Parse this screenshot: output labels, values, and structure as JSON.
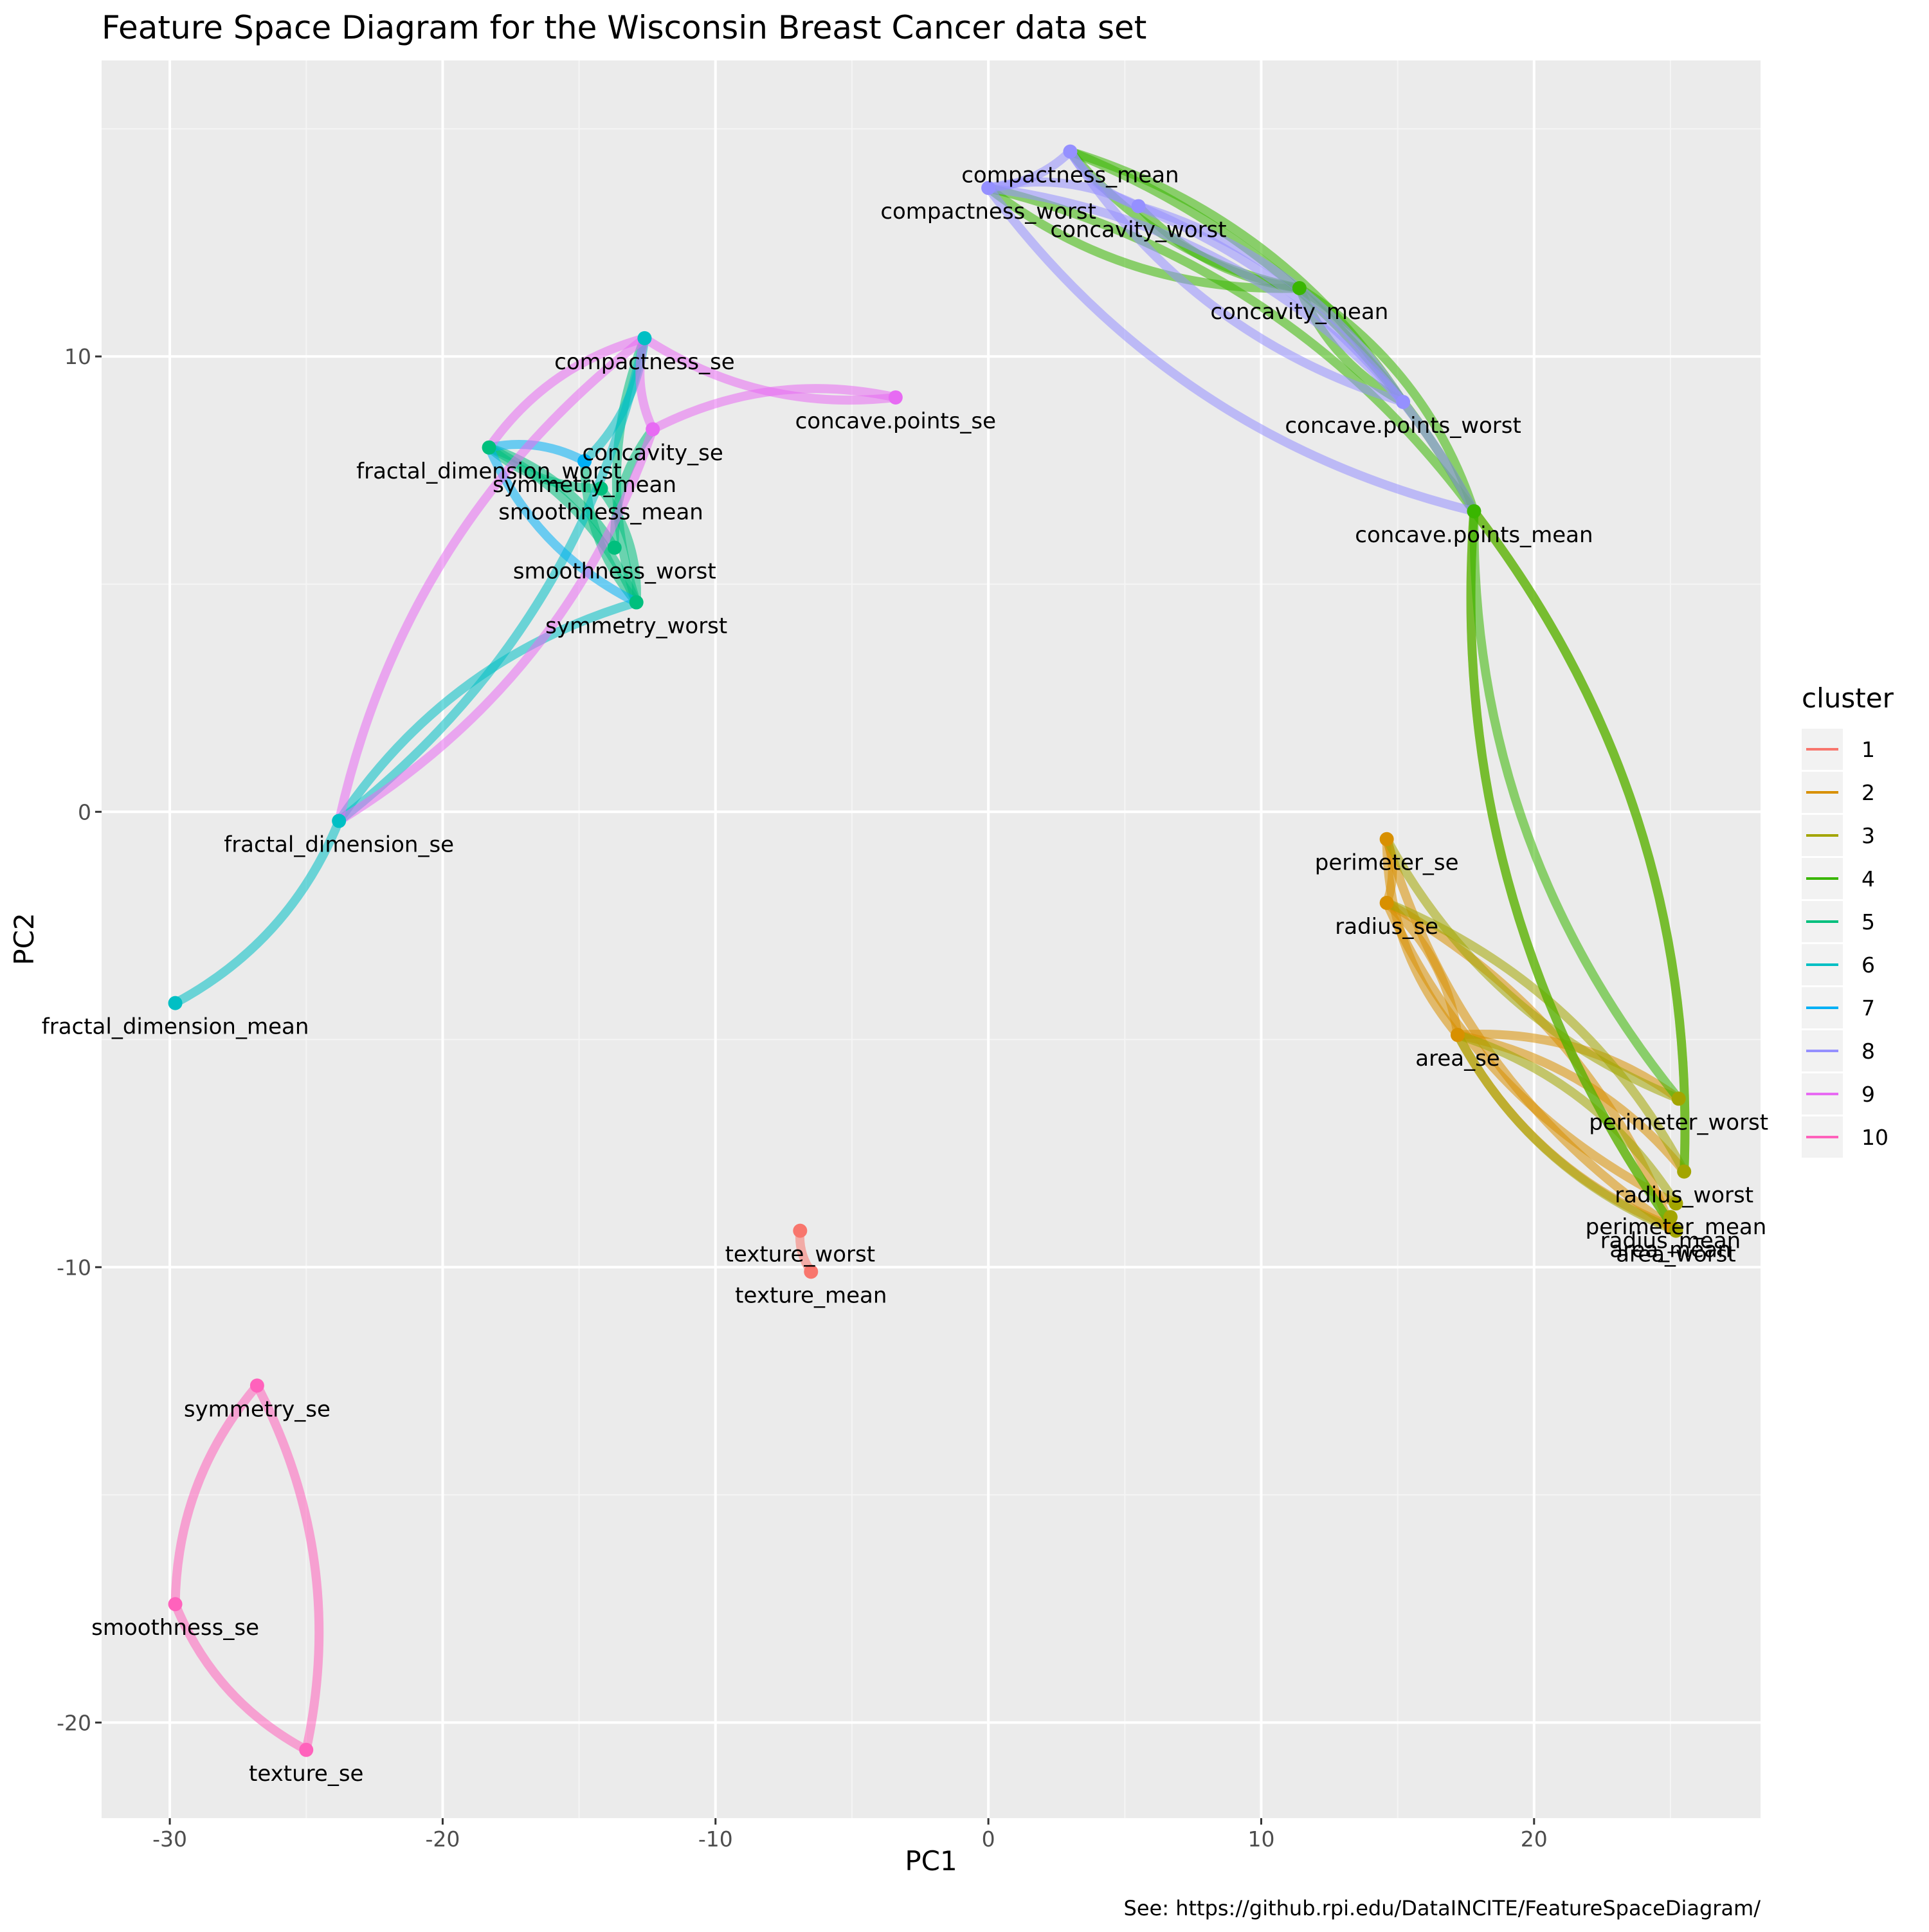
{
  "chart_data": {
    "type": "network",
    "title": "Feature Space Diagram for the Wisconsin Breast Cancer data set",
    "xlabel": "PC1",
    "ylabel": "PC2",
    "xlim": [
      -32.5,
      28.3
    ],
    "ylim": [
      -22.1,
      16.5
    ],
    "x_ticks": [
      -30,
      -20,
      -10,
      0,
      10,
      20
    ],
    "y_ticks": [
      -20,
      -10,
      0,
      10
    ],
    "grid": true,
    "legend": {
      "title": "cluster",
      "placement": "right",
      "entries": [
        "1",
        "2",
        "3",
        "4",
        "5",
        "6",
        "7",
        "8",
        "9",
        "10"
      ]
    },
    "cluster_colors": {
      "1": "#F8766D",
      "2": "#D89000",
      "3": "#A3A500",
      "4": "#39B600",
      "5": "#00BF7D",
      "6": "#00BFC4",
      "7": "#00B0F6",
      "8": "#9590FF",
      "9": "#E76BF3",
      "10": "#FF62BC"
    },
    "caption": "See: https://github.rpi.edu/DataINCITE/FeatureSpaceDiagram/",
    "nodes": [
      {
        "id": "texture_worst",
        "label": "texture_worst",
        "x": -6.9,
        "y": -9.2,
        "cluster": "1"
      },
      {
        "id": "texture_mean",
        "label": "texture_mean",
        "x": -6.5,
        "y": -10.1,
        "cluster": "1"
      },
      {
        "id": "perimeter_se",
        "label": "perimeter_se",
        "x": 14.6,
        "y": -0.6,
        "cluster": "2"
      },
      {
        "id": "radius_se",
        "label": "radius_se",
        "x": 14.6,
        "y": -2.0,
        "cluster": "2"
      },
      {
        "id": "area_se",
        "label": "area_se",
        "x": 17.2,
        "y": -4.9,
        "cluster": "2"
      },
      {
        "id": "area_mean",
        "label": "area_mean",
        "x": 25.0,
        "y": -9.1,
        "cluster": "2"
      },
      {
        "id": "perimeter_worst",
        "label": "perimeter_worst",
        "x": 25.3,
        "y": -6.3,
        "cluster": "3"
      },
      {
        "id": "perimeter_mean",
        "label": "perimeter_mean",
        "x": 25.2,
        "y": -8.6,
        "cluster": "3"
      },
      {
        "id": "radius_mean",
        "label": "radius_mean",
        "x": 25.0,
        "y": -8.9,
        "cluster": "3"
      },
      {
        "id": "radius_worst",
        "label": "radius_worst",
        "x": 25.5,
        "y": -7.9,
        "cluster": "3"
      },
      {
        "id": "area_worst",
        "label": "area_worst",
        "x": 25.2,
        "y": -9.2,
        "cluster": "3"
      },
      {
        "id": "concavity_mean",
        "label": "concavity_mean",
        "x": 11.4,
        "y": 11.5,
        "cluster": "4"
      },
      {
        "id": "concave.points_mean",
        "label": "concave.points_mean",
        "x": 17.8,
        "y": 6.6,
        "cluster": "4"
      },
      {
        "id": "fractal_dimension_worst",
        "label": "fractal_dimension_worst",
        "x": -18.3,
        "y": 8.0,
        "cluster": "5"
      },
      {
        "id": "symmetry_worst",
        "label": "symmetry_worst",
        "x": -12.9,
        "y": 4.6,
        "cluster": "5"
      },
      {
        "id": "smoothness_mean",
        "label": "smoothness_mean",
        "x": -14.2,
        "y": 7.1,
        "cluster": "5"
      },
      {
        "id": "smoothness_worst",
        "label": "smoothness_worst",
        "x": -13.7,
        "y": 5.8,
        "cluster": "5"
      },
      {
        "id": "fractal_dimension_se",
        "label": "fractal_dimension_se",
        "x": -23.8,
        "y": -0.2,
        "cluster": "6"
      },
      {
        "id": "fractal_dimension_mean",
        "label": "fractal_dimension_mean",
        "x": -29.8,
        "y": -4.2,
        "cluster": "6"
      },
      {
        "id": "compactness_se",
        "label": "compactness_se",
        "x": -12.6,
        "y": 10.4,
        "cluster": "6"
      },
      {
        "id": "symmetry_mean",
        "label": "symmetry_mean",
        "x": -14.8,
        "y": 7.7,
        "cluster": "7"
      },
      {
        "id": "compactness_worst",
        "label": "compactness_worst",
        "x": 0.0,
        "y": 13.7,
        "cluster": "8"
      },
      {
        "id": "compactness_mean",
        "label": "compactness_mean",
        "x": 3.0,
        "y": 14.5,
        "cluster": "8"
      },
      {
        "id": "concavity_worst",
        "label": "concavity_worst",
        "x": 5.5,
        "y": 13.3,
        "cluster": "8"
      },
      {
        "id": "concave.points_worst",
        "label": "concave.points_worst",
        "x": 15.2,
        "y": 9.0,
        "cluster": "8"
      },
      {
        "id": "concavity_se",
        "label": "concavity_se",
        "x": -12.3,
        "y": 8.4,
        "cluster": "9"
      },
      {
        "id": "concave.points_se",
        "label": "concave.points_se",
        "x": -3.4,
        "y": 9.1,
        "cluster": "9"
      },
      {
        "id": "symmetry_se",
        "label": "symmetry_se",
        "x": -26.8,
        "y": -12.6,
        "cluster": "10"
      },
      {
        "id": "smoothness_se",
        "label": "smoothness_se",
        "x": -29.8,
        "y": -17.4,
        "cluster": "10"
      },
      {
        "id": "texture_se",
        "label": "texture_se",
        "x": -25.0,
        "y": -20.6,
        "cluster": "10"
      }
    ],
    "edges": [
      {
        "cluster": "1",
        "from": "texture_worst",
        "to": "texture_mean"
      },
      {
        "cluster": "2",
        "from": "perimeter_se",
        "to": "radius_se"
      },
      {
        "cluster": "2",
        "from": "perimeter_se",
        "to": "area_se"
      },
      {
        "cluster": "2",
        "from": "radius_se",
        "to": "area_se"
      },
      {
        "cluster": "2",
        "from": "perimeter_se",
        "to": "area_mean"
      },
      {
        "cluster": "2",
        "from": "radius_se",
        "to": "area_mean"
      },
      {
        "cluster": "2",
        "from": "area_se",
        "to": "area_mean"
      },
      {
        "cluster": "2",
        "from": "area_se",
        "to": "perimeter_worst"
      },
      {
        "cluster": "2",
        "from": "radius_se",
        "to": "perimeter_mean"
      },
      {
        "cluster": "2",
        "from": "area_se",
        "to": "radius_worst"
      },
      {
        "cluster": "3",
        "from": "perimeter_se",
        "to": "perimeter_worst"
      },
      {
        "cluster": "3",
        "from": "radius_se",
        "to": "radius_worst"
      },
      {
        "cluster": "3",
        "from": "area_se",
        "to": "area_worst"
      },
      {
        "cluster": "3",
        "from": "area_se",
        "to": "perimeter_mean"
      },
      {
        "cluster": "3",
        "from": "concave.points_mean",
        "to": "area_worst"
      },
      {
        "cluster": "3",
        "from": "concave.points_mean",
        "to": "radius_worst"
      },
      {
        "cluster": "4",
        "from": "compactness_worst",
        "to": "concavity_mean"
      },
      {
        "cluster": "4",
        "from": "compactness_worst",
        "to": "concave.points_mean"
      },
      {
        "cluster": "4",
        "from": "compactness_mean",
        "to": "concavity_mean"
      },
      {
        "cluster": "4",
        "from": "compactness_mean",
        "to": "concave.points_mean"
      },
      {
        "cluster": "4",
        "from": "concavity_worst",
        "to": "concavity_mean"
      },
      {
        "cluster": "4",
        "from": "concavity_mean",
        "to": "concave.points_mean"
      },
      {
        "cluster": "4",
        "from": "concavity_mean",
        "to": "concave.points_worst"
      },
      {
        "cluster": "4",
        "from": "compactness_mean",
        "to": "concave.points_worst"
      },
      {
        "cluster": "4",
        "from": "concave.points_mean",
        "to": "perimeter_worst"
      },
      {
        "cluster": "4",
        "from": "concave.points_mean",
        "to": "radius_worst"
      },
      {
        "cluster": "4",
        "from": "concave.points_mean",
        "to": "area_worst"
      },
      {
        "cluster": "5",
        "from": "fractal_dimension_worst",
        "to": "symmetry_worst"
      },
      {
        "cluster": "5",
        "from": "fractal_dimension_worst",
        "to": "smoothness_mean"
      },
      {
        "cluster": "5",
        "from": "fractal_dimension_worst",
        "to": "smoothness_worst"
      },
      {
        "cluster": "5",
        "from": "symmetry_mean",
        "to": "symmetry_worst"
      },
      {
        "cluster": "5",
        "from": "smoothness_mean",
        "to": "symmetry_worst"
      },
      {
        "cluster": "5",
        "from": "compactness_se",
        "to": "symmetry_worst"
      },
      {
        "cluster": "5",
        "from": "smoothness_worst",
        "to": "concavity_se"
      },
      {
        "cluster": "6",
        "from": "fractal_dimension_mean",
        "to": "fractal_dimension_se"
      },
      {
        "cluster": "6",
        "from": "fractal_dimension_se",
        "to": "symmetry_worst"
      },
      {
        "cluster": "6",
        "from": "fractal_dimension_se",
        "to": "compactness_se"
      },
      {
        "cluster": "6",
        "from": "compactness_se",
        "to": "symmetry_mean"
      },
      {
        "cluster": "7",
        "from": "fractal_dimension_worst",
        "to": "symmetry_worst"
      },
      {
        "cluster": "7",
        "from": "fractal_dimension_worst",
        "to": "symmetry_mean"
      },
      {
        "cluster": "8",
        "from": "compactness_worst",
        "to": "compactness_mean"
      },
      {
        "cluster": "8",
        "from": "compactness_worst",
        "to": "concavity_worst"
      },
      {
        "cluster": "8",
        "from": "compactness_mean",
        "to": "concavity_worst"
      },
      {
        "cluster": "8",
        "from": "compactness_worst",
        "to": "concave.points_worst"
      },
      {
        "cluster": "8",
        "from": "compactness_mean",
        "to": "concave.points_worst"
      },
      {
        "cluster": "8",
        "from": "concavity_worst",
        "to": "concave.points_worst"
      },
      {
        "cluster": "8",
        "from": "compactness_worst",
        "to": "concave.points_mean"
      },
      {
        "cluster": "8",
        "from": "concavity_worst",
        "to": "concave.points_mean"
      },
      {
        "cluster": "9",
        "from": "compactness_se",
        "to": "concave.points_se"
      },
      {
        "cluster": "9",
        "from": "concavity_se",
        "to": "concave.points_se"
      },
      {
        "cluster": "9",
        "from": "compactness_se",
        "to": "concavity_se"
      },
      {
        "cluster": "9",
        "from": "fractal_dimension_se",
        "to": "compactness_se"
      },
      {
        "cluster": "9",
        "from": "fractal_dimension_se",
        "to": "concavity_se"
      },
      {
        "cluster": "9",
        "from": "fractal_dimension_worst",
        "to": "compactness_se"
      },
      {
        "cluster": "10",
        "from": "symmetry_se",
        "to": "smoothness_se"
      },
      {
        "cluster": "10",
        "from": "symmetry_se",
        "to": "texture_se"
      },
      {
        "cluster": "10",
        "from": "smoothness_se",
        "to": "texture_se"
      }
    ]
  }
}
